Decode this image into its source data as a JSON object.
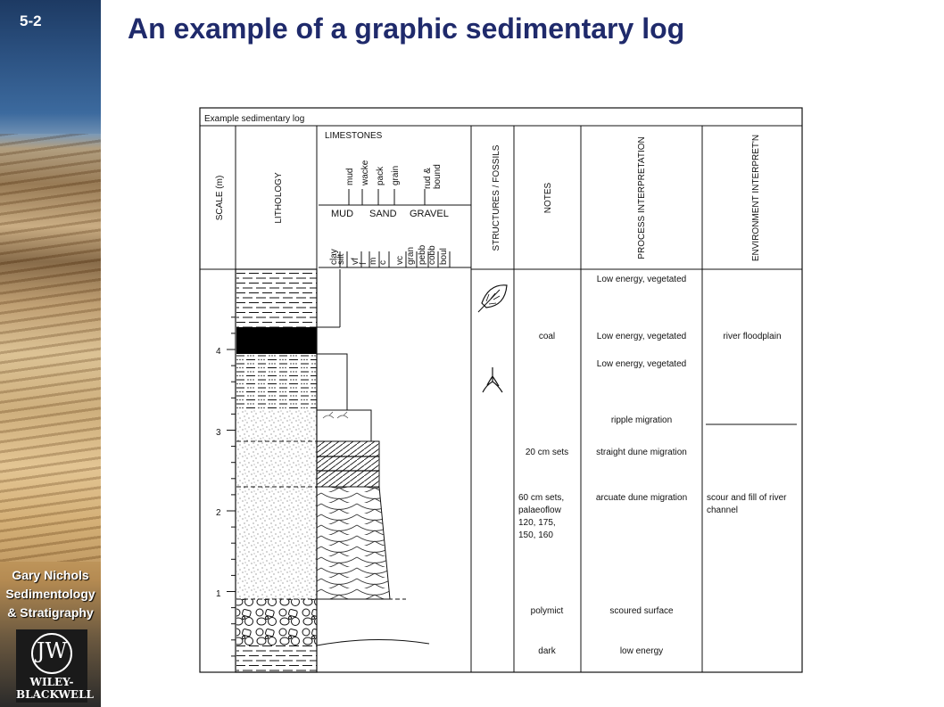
{
  "slide": {
    "number": "5-2",
    "title": "An example of a graphic sedimentary log"
  },
  "credit": {
    "line1": "Gary Nichols",
    "line2": "Sedimentology",
    "line3": "& Stratigraphy"
  },
  "publisher": {
    "line1": "WILEY-",
    "line2": "BLACKWELL",
    "mark": "JW"
  },
  "log": {
    "caption": "Example sedimentary log",
    "headers": {
      "scale": "SCALE (m)",
      "lithology": "LITHOLOGY",
      "limestones": "LIMESTONES",
      "structures": "STRUCTURES / FOSSILS",
      "notes": "NOTES",
      "process": "PROCESS INTERPRETATION",
      "environment": "ENVIRONMENT INTERPRET'N"
    },
    "limestone_classes": [
      "mud",
      "wacke",
      "pack",
      "grain",
      "rud &",
      "bound"
    ],
    "grain_groups": [
      "MUD",
      "SAND",
      "GRAVEL"
    ],
    "grain_sizes": [
      "clay",
      "silt",
      "vf",
      "f",
      "m",
      "c",
      "vc",
      "gran",
      "pebb",
      "cobb",
      "boul"
    ],
    "scale_ticks": [
      "4",
      "3",
      "2",
      "1"
    ],
    "notes": {
      "coal": "coal",
      "sets20": "20 cm sets",
      "sets60_1": "60 cm sets,",
      "sets60_2": "palaeoflow",
      "sets60_3": "120, 175,",
      "sets60_4": "150, 160",
      "polymict": "polymict",
      "dark": "dark"
    },
    "process": {
      "p1": "Low energy, vegetated",
      "p2": "Low energy, vegetated",
      "p3": "Low energy, vegetated",
      "p4": "ripple migration",
      "p5": "straight dune migration",
      "p6": "arcuate dune migration",
      "p7": "scoured surface",
      "p8": "low energy"
    },
    "environment": {
      "e1": "river floodplain",
      "e2a": "scour and fill of river",
      "e2b": "channel"
    }
  }
}
